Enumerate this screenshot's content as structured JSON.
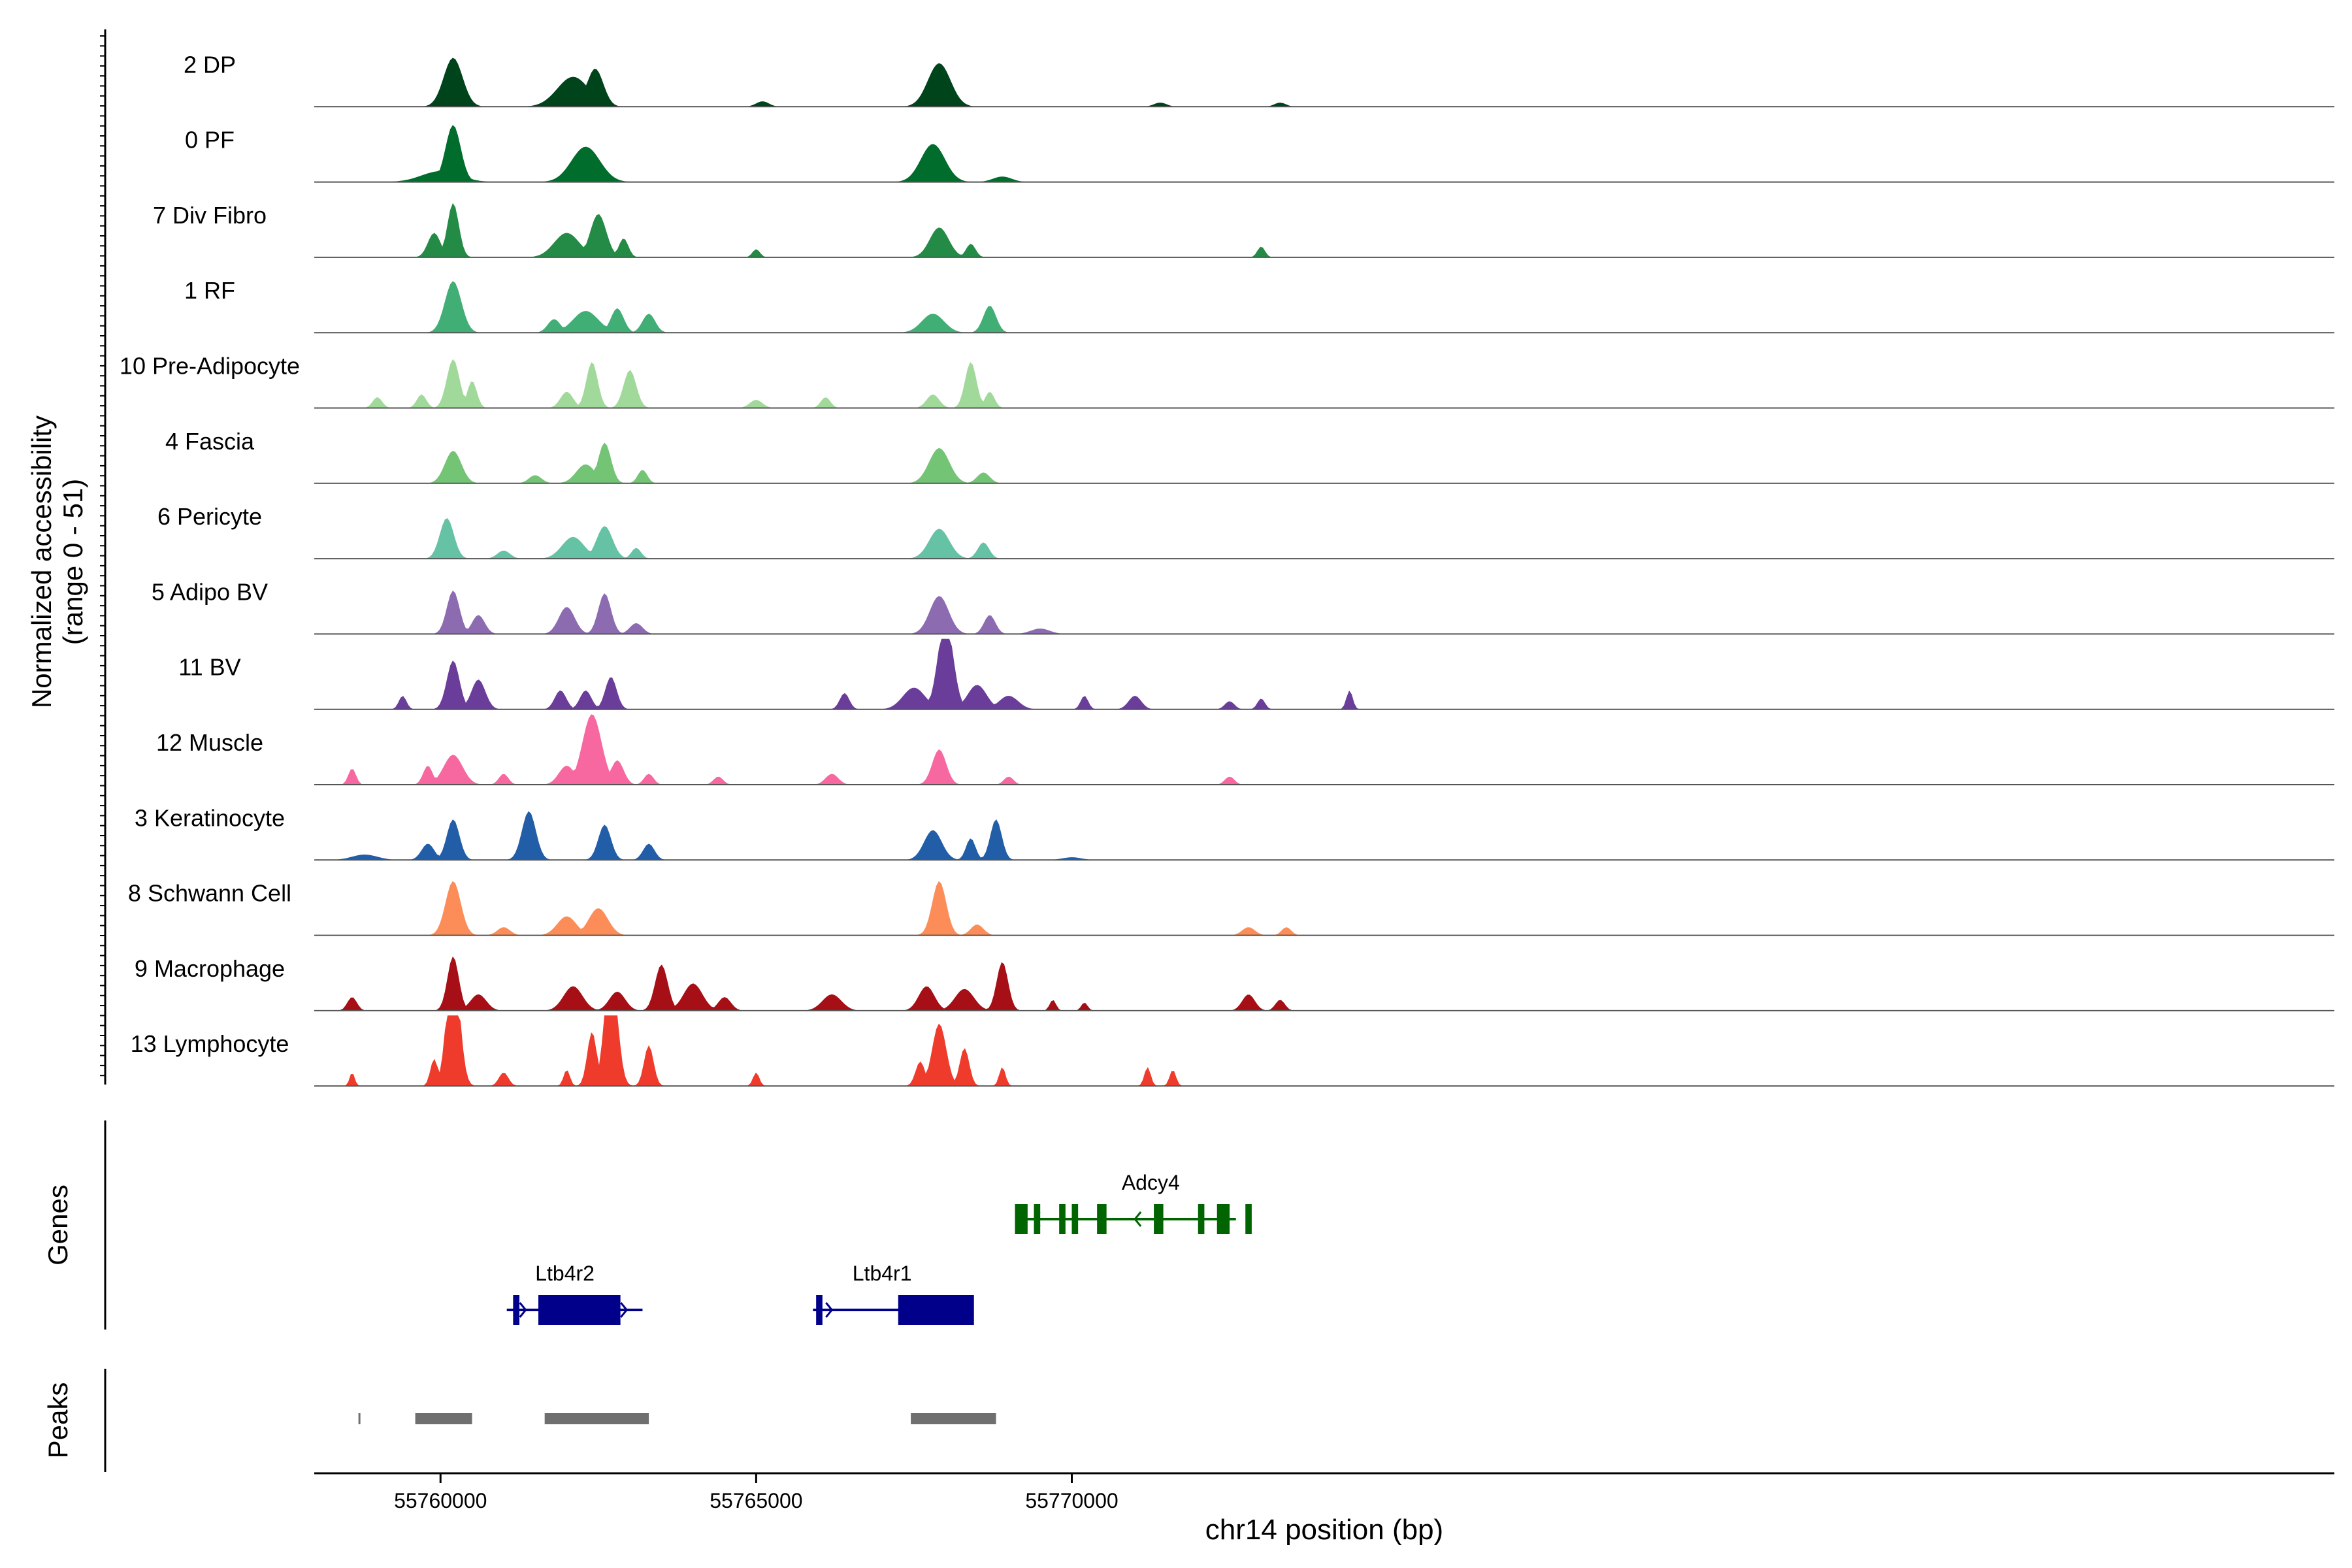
{
  "chart_data": {
    "type": "area",
    "title": "",
    "ylabel": "Normalized accessibility",
    "ylabel_range": "(range 0 - 51)",
    "ylim": [
      0,
      51
    ],
    "xlabel": "chr14 position (bp)",
    "xlim": [
      55758000,
      55790000
    ],
    "xticks": [
      55760000,
      55765000,
      55770000
    ],
    "xtick_labels": [
      "55760000",
      "55765000",
      "55770000"
    ],
    "tracks": [
      {
        "label": "2 DP",
        "color": "#00441b",
        "peaks": [
          [
            55760200,
            36,
            300
          ],
          [
            55762100,
            22,
            500
          ],
          [
            55762450,
            28,
            260
          ],
          [
            55765100,
            4,
            200
          ],
          [
            55767900,
            32,
            360
          ],
          [
            55771400,
            3,
            200
          ],
          [
            55773300,
            3,
            180
          ]
        ]
      },
      {
        "label": "0 PF",
        "color": "#006d2c",
        "peaks": [
          [
            55760200,
            42,
            240
          ],
          [
            55762300,
            26,
            450
          ],
          [
            55767800,
            28,
            380
          ],
          [
            55760000,
            8,
            600
          ],
          [
            55768900,
            4,
            300
          ]
        ]
      },
      {
        "label": "7 Div Fibro",
        "color": "#238b45",
        "peaks": [
          [
            55759900,
            18,
            200
          ],
          [
            55760200,
            40,
            180
          ],
          [
            55762000,
            18,
            400
          ],
          [
            55762500,
            32,
            250
          ],
          [
            55762900,
            14,
            150
          ],
          [
            55767900,
            22,
            300
          ],
          [
            55768400,
            10,
            150
          ],
          [
            55773000,
            8,
            120
          ],
          [
            55765000,
            6,
            120
          ]
        ]
      },
      {
        "label": "1 RF",
        "color": "#41ae76",
        "peaks": [
          [
            55760200,
            38,
            260
          ],
          [
            55761800,
            10,
            200
          ],
          [
            55762300,
            16,
            400
          ],
          [
            55762800,
            18,
            200
          ],
          [
            55763300,
            14,
            200
          ],
          [
            55767800,
            14,
            350
          ],
          [
            55768700,
            20,
            200
          ]
        ]
      },
      {
        "label": "10 Pre-Adipocyte",
        "color": "#a1d99b",
        "peaks": [
          [
            55759000,
            8,
            150
          ],
          [
            55759700,
            10,
            150
          ],
          [
            55760200,
            36,
            200
          ],
          [
            55760500,
            20,
            150
          ],
          [
            55762000,
            12,
            200
          ],
          [
            55762400,
            34,
            180
          ],
          [
            55763000,
            28,
            200
          ],
          [
            55765000,
            6,
            200
          ],
          [
            55767800,
            10,
            200
          ],
          [
            55768400,
            34,
            180
          ],
          [
            55768700,
            12,
            150
          ],
          [
            55766100,
            8,
            150
          ]
        ]
      },
      {
        "label": "4 Fascia",
        "color": "#74c476",
        "peaks": [
          [
            55760200,
            24,
            260
          ],
          [
            55761500,
            6,
            200
          ],
          [
            55762300,
            14,
            300
          ],
          [
            55762600,
            30,
            200
          ],
          [
            55763200,
            10,
            150
          ],
          [
            55767900,
            26,
            320
          ],
          [
            55768600,
            8,
            200
          ]
        ]
      },
      {
        "label": "6 Pericyte",
        "color": "#66c2a4",
        "peaks": [
          [
            55760100,
            30,
            220
          ],
          [
            55761000,
            6,
            200
          ],
          [
            55762100,
            16,
            350
          ],
          [
            55762600,
            24,
            250
          ],
          [
            55763100,
            8,
            150
          ],
          [
            55767900,
            22,
            320
          ],
          [
            55768600,
            12,
            180
          ]
        ]
      },
      {
        "label": "5 Adipo BV",
        "color": "#8c6bb1",
        "peaks": [
          [
            55760200,
            32,
            200
          ],
          [
            55760600,
            14,
            200
          ],
          [
            55762000,
            20,
            250
          ],
          [
            55762600,
            30,
            200
          ],
          [
            55763100,
            8,
            200
          ],
          [
            55767900,
            28,
            300
          ],
          [
            55768700,
            14,
            180
          ],
          [
            55769500,
            4,
            300
          ]
        ]
      },
      {
        "label": "11 BV",
        "color": "#6a3d9a",
        "peaks": [
          [
            55759400,
            10,
            120
          ],
          [
            55760200,
            36,
            200
          ],
          [
            55760600,
            22,
            220
          ],
          [
            55761900,
            14,
            180
          ],
          [
            55762300,
            14,
            180
          ],
          [
            55762700,
            24,
            180
          ],
          [
            55766400,
            12,
            150
          ],
          [
            55767500,
            16,
            350
          ],
          [
            55768000,
            66,
            240
          ],
          [
            55768500,
            18,
            300
          ],
          [
            55769000,
            10,
            300
          ],
          [
            55770200,
            10,
            120
          ],
          [
            55771000,
            10,
            200
          ],
          [
            55773000,
            8,
            120
          ],
          [
            55774400,
            14,
            100
          ],
          [
            55772500,
            6,
            150
          ]
        ]
      },
      {
        "label": "12 Muscle",
        "color": "#f768a1",
        "peaks": [
          [
            55758600,
            12,
            120
          ],
          [
            55759800,
            14,
            150
          ],
          [
            55760200,
            22,
            300
          ],
          [
            55761000,
            8,
            150
          ],
          [
            55762000,
            14,
            250
          ],
          [
            55762400,
            52,
            300
          ],
          [
            55762800,
            18,
            200
          ],
          [
            55763300,
            8,
            150
          ],
          [
            55764400,
            6,
            150
          ],
          [
            55767900,
            26,
            220
          ],
          [
            55766200,
            8,
            200
          ],
          [
            55769000,
            6,
            150
          ],
          [
            55772500,
            6,
            150
          ]
        ]
      },
      {
        "label": "3 Keratinocyte",
        "color": "#225ea8",
        "peaks": [
          [
            55759800,
            12,
            200
          ],
          [
            55760200,
            30,
            200
          ],
          [
            55761400,
            36,
            220
          ],
          [
            55762600,
            26,
            200
          ],
          [
            55763300,
            12,
            180
          ],
          [
            55767800,
            22,
            280
          ],
          [
            55768400,
            16,
            150
          ],
          [
            55768800,
            30,
            180
          ],
          [
            55758800,
            4,
            400
          ],
          [
            55770000,
            2,
            300
          ]
        ]
      },
      {
        "label": "8 Schwann Cell",
        "color": "#fc8d59",
        "peaks": [
          [
            55760200,
            40,
            240
          ],
          [
            55761000,
            6,
            200
          ],
          [
            55762000,
            14,
            300
          ],
          [
            55762500,
            20,
            300
          ],
          [
            55767900,
            40,
            220
          ],
          [
            55768500,
            8,
            200
          ],
          [
            55772800,
            6,
            200
          ],
          [
            55773400,
            6,
            150
          ]
        ]
      },
      {
        "label": "9 Macrophage",
        "color": "#a50f15",
        "peaks": [
          [
            55758600,
            10,
            150
          ],
          [
            55760200,
            40,
            180
          ],
          [
            55760600,
            12,
            250
          ],
          [
            55762100,
            18,
            300
          ],
          [
            55762800,
            14,
            250
          ],
          [
            55763500,
            34,
            200
          ],
          [
            55764000,
            20,
            300
          ],
          [
            55764500,
            10,
            200
          ],
          [
            55766200,
            12,
            300
          ],
          [
            55767700,
            18,
            250
          ],
          [
            55768300,
            16,
            300
          ],
          [
            55768900,
            36,
            180
          ],
          [
            55769700,
            8,
            100
          ],
          [
            55770200,
            6,
            100
          ],
          [
            55772800,
            12,
            200
          ],
          [
            55773300,
            8,
            150
          ]
        ]
      },
      {
        "label": "13 Lymphocyte",
        "color": "#ef3b2c",
        "peaks": [
          [
            55758600,
            10,
            80
          ],
          [
            55759900,
            20,
            120
          ],
          [
            55760200,
            96,
            200
          ],
          [
            55761000,
            10,
            150
          ],
          [
            55762000,
            12,
            100
          ],
          [
            55762400,
            40,
            150
          ],
          [
            55762700,
            90,
            200
          ],
          [
            55763300,
            30,
            150
          ],
          [
            55765000,
            10,
            100
          ],
          [
            55767600,
            18,
            150
          ],
          [
            55767900,
            46,
            220
          ],
          [
            55768300,
            28,
            150
          ],
          [
            55768900,
            14,
            100
          ],
          [
            55771200,
            14,
            100
          ],
          [
            55771600,
            12,
            100
          ]
        ]
      }
    ],
    "genes": [
      {
        "name": "Adcy4",
        "strand": "-",
        "color": "#006400",
        "start": 55769100,
        "end": 55772600,
        "exons": [
          [
            55769100,
            55769300
          ],
          [
            55769400,
            55769500
          ],
          [
            55769800,
            55769900
          ],
          [
            55770000,
            55770100
          ],
          [
            55770400,
            55770550
          ],
          [
            55771300,
            55771450
          ],
          [
            55772000,
            55772100
          ],
          [
            55772300,
            55772500
          ],
          [
            55772750,
            55772850
          ]
        ]
      },
      {
        "name": "Ltb4r2",
        "strand": "+",
        "color": "#00008b",
        "start": 55761050,
        "end": 55763200,
        "exons": [
          [
            55761150,
            55761250
          ],
          [
            55761550,
            55762850
          ]
        ]
      },
      {
        "name": "Ltb4r1",
        "strand": "+",
        "color": "#00008b",
        "start": 55765900,
        "end": 55768400,
        "exons": [
          [
            55765950,
            55766050
          ],
          [
            55767250,
            55768450
          ]
        ]
      }
    ],
    "peaks_track": [
      [
        55758700,
        55758710
      ],
      [
        55759600,
        55760500
      ],
      [
        55761650,
        55763300
      ],
      [
        55767450,
        55768800
      ]
    ],
    "panel_labels": {
      "genes": "Genes",
      "peaks": "Peaks"
    }
  }
}
